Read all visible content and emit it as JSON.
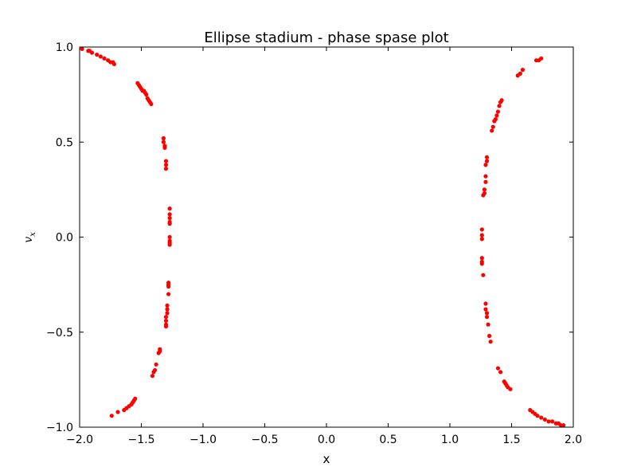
{
  "chart_data": {
    "type": "scatter",
    "title": "Ellipse stadium - phase spase plot",
    "xlabel": "x",
    "ylabel": "v",
    "ylabel_sub": "x",
    "xlim": [
      -2.0,
      2.0
    ],
    "ylim": [
      -1.0,
      1.0
    ],
    "xticks": [
      -2.0,
      -1.5,
      -1.0,
      -0.5,
      0.0,
      0.5,
      1.0,
      1.5,
      2.0
    ],
    "xtick_labels": [
      "−2.0",
      "−1.5",
      "−1.0",
      "−0.5",
      "0.0",
      "0.5",
      "1.0",
      "1.5",
      "2.0"
    ],
    "yticks": [
      1.0,
      0.5,
      0.0,
      -0.5,
      -1.0
    ],
    "ytick_labels": [
      "1.0",
      "0.5",
      "0.0",
      "−0.5",
      "−1.0"
    ],
    "grid": false,
    "marker_color": "#ff0000",
    "series": [
      {
        "x": [
          -1.98,
          -1.93,
          -1.92,
          -1.9,
          -1.86,
          -1.83,
          -1.8,
          -1.77,
          -1.75,
          -1.73,
          -1.72,
          -1.53,
          -1.52,
          -1.51,
          -1.5,
          -1.49,
          -1.48,
          -1.47,
          -1.46,
          -1.45,
          -1.44,
          -1.43,
          -1.42,
          -1.32,
          -1.32,
          -1.31,
          -1.31,
          -1.3,
          -1.3,
          -1.3,
          -1.27,
          -1.27,
          -1.27,
          -1.27,
          -1.27,
          -1.27,
          -1.27,
          -1.27,
          -1.27,
          -1.28,
          -1.28,
          -1.28,
          -1.28,
          -1.29,
          -1.29,
          -1.29,
          -1.3,
          -1.3,
          -1.3,
          -1.3,
          -1.35,
          -1.35,
          -1.36,
          -1.38,
          -1.39,
          -1.4,
          -1.41,
          -1.55,
          -1.56,
          -1.57,
          -1.58,
          -1.6,
          -1.62,
          -1.64,
          -1.69,
          -1.74
        ],
        "y": [
          0.99,
          0.98,
          0.98,
          0.97,
          0.96,
          0.95,
          0.94,
          0.93,
          0.92,
          0.92,
          0.91,
          0.81,
          0.8,
          0.79,
          0.78,
          0.77,
          0.77,
          0.76,
          0.75,
          0.73,
          0.72,
          0.71,
          0.7,
          0.52,
          0.5,
          0.48,
          0.47,
          0.4,
          0.38,
          0.36,
          0.15,
          0.12,
          0.1,
          0.08,
          0.07,
          0.0,
          -0.02,
          -0.03,
          -0.04,
          -0.24,
          -0.25,
          -0.26,
          -0.3,
          -0.36,
          -0.38,
          -0.4,
          -0.42,
          -0.44,
          -0.46,
          -0.47,
          -0.59,
          -0.6,
          -0.61,
          -0.67,
          -0.7,
          -0.71,
          -0.73,
          -0.85,
          -0.86,
          -0.87,
          -0.88,
          -0.89,
          -0.9,
          -0.91,
          -0.92,
          -0.94
        ]
      },
      {
        "x": [
          1.74,
          1.72,
          1.7,
          1.59,
          1.57,
          1.55,
          1.42,
          1.41,
          1.4,
          1.39,
          1.38,
          1.37,
          1.36,
          1.35,
          1.34,
          1.3,
          1.3,
          1.29,
          1.29,
          1.29,
          1.28,
          1.28,
          1.27,
          1.26,
          1.26,
          1.26,
          1.26,
          1.26,
          1.26,
          1.27,
          1.29,
          1.29,
          1.3,
          1.3,
          1.31,
          1.32,
          1.33,
          1.39,
          1.41,
          1.44,
          1.45,
          1.46,
          1.47,
          1.49,
          1.65,
          1.67,
          1.69,
          1.71,
          1.74,
          1.77,
          1.8,
          1.83,
          1.86,
          1.88,
          1.9,
          1.92
        ],
        "y": [
          0.94,
          0.93,
          0.93,
          0.88,
          0.86,
          0.85,
          0.72,
          0.71,
          0.69,
          0.66,
          0.64,
          0.62,
          0.61,
          0.58,
          0.56,
          0.42,
          0.4,
          0.38,
          0.32,
          0.29,
          0.25,
          0.23,
          0.22,
          0.04,
          0.01,
          -0.01,
          -0.11,
          -0.13,
          -0.14,
          -0.2,
          -0.35,
          -0.38,
          -0.4,
          -0.42,
          -0.46,
          -0.52,
          -0.55,
          -0.69,
          -0.71,
          -0.76,
          -0.77,
          -0.78,
          -0.79,
          -0.8,
          -0.91,
          -0.92,
          -0.93,
          -0.94,
          -0.95,
          -0.96,
          -0.97,
          -0.97,
          -0.98,
          -0.98,
          -0.99,
          -0.99
        ]
      }
    ]
  }
}
